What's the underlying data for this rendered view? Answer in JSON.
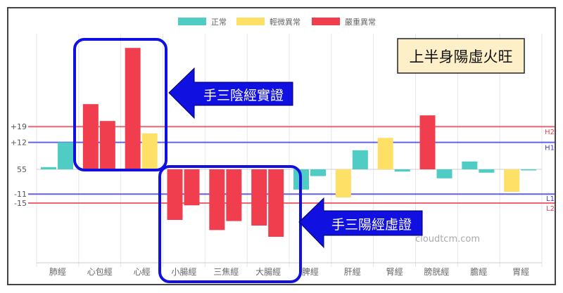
{
  "chart_data": {
    "type": "bar",
    "baseline_label": "55",
    "categories": [
      "肺經",
      "心包經",
      "心經",
      "小腸經",
      "三焦經",
      "大腸經",
      "脾經",
      "肝經",
      "腎經",
      "膀胱經",
      "膽經",
      "胃經"
    ],
    "series": [
      {
        "values": [
          1,
          29,
          54,
          -22.5,
          -27,
          -25,
          -9,
          -12.5,
          14,
          24,
          3.5,
          -10
        ],
        "status": [
          "正常",
          "嚴重異常",
          "嚴重異常",
          "嚴重異常",
          "嚴重異常",
          "嚴重異常",
          "正常",
          "輕微異常",
          "輕微異常",
          "嚴重異常",
          "正常",
          "輕微異常"
        ]
      },
      {
        "values": [
          12,
          21.5,
          16,
          -16,
          -23,
          -30,
          -3,
          8.5,
          -1,
          -4,
          -1.5,
          -0.3
        ],
        "status": [
          "正常",
          "嚴重異常",
          "輕微異常",
          "嚴重異常",
          "嚴重異常",
          "嚴重異常",
          "正常",
          "正常",
          "正常",
          "正常",
          "正常",
          "正常"
        ]
      }
    ],
    "legend": [
      {
        "label": "正常",
        "color": "#4fcdc4"
      },
      {
        "label": "輕微異常",
        "color": "#ffe066"
      },
      {
        "label": "嚴重異常",
        "color": "#f03e4e"
      }
    ],
    "legend_position": "top",
    "reference_lines": [
      {
        "value": 19,
        "tick": "+19",
        "label": "H2",
        "color": "#f03e4e"
      },
      {
        "value": 12,
        "tick": "+12",
        "label": "H1",
        "color": "#3a3ae8"
      },
      {
        "value": -11,
        "tick": "-11",
        "label": "L1",
        "color": "#3a3ae8"
      },
      {
        "value": -15,
        "tick": "-15",
        "label": "L2",
        "color": "#f03e4e"
      }
    ],
    "ylim": [
      -41,
      58
    ],
    "grid": true
  },
  "annotations": {
    "summary_box": "上半身陽虛火旺",
    "arrow_top": "手三陰經實證",
    "arrow_bottom": "手三陽經虛證",
    "watermark": "cloudtcm.com",
    "highlight_color": "#1010e0"
  }
}
